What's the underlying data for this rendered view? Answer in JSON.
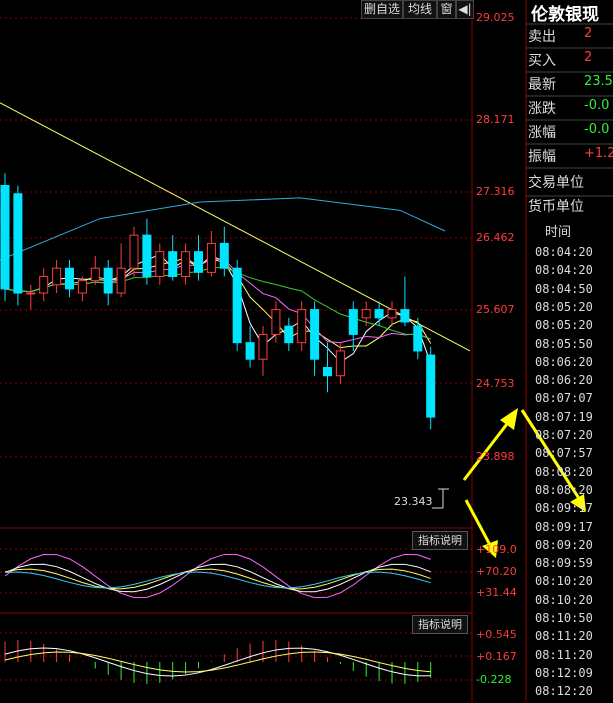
{
  "header": {
    "buttons": [
      {
        "label": "删自选"
      },
      {
        "label": "均线"
      },
      {
        "label": "窗"
      },
      {
        "label": "◀|"
      }
    ]
  },
  "price_axis": [
    "29.025",
    "28.171",
    "27.316",
    "26.462",
    "25.607",
    "24.753",
    "23.898"
  ],
  "low_marker": "23.343",
  "indicator1": {
    "button": "指标说明",
    "axis": [
      "+109.0",
      "+70.20",
      "+31.44"
    ]
  },
  "indicator2": {
    "button": "指标说明",
    "axis": [
      "+0.545",
      "+0.167",
      "-0.228"
    ]
  },
  "quote_panel": {
    "title": "伦敦银现",
    "rows": [
      {
        "label": "卖出",
        "value": "2",
        "color": "#ff3b3b"
      },
      {
        "label": "买入",
        "value": "2",
        "color": "#ff3b3b"
      },
      {
        "label": "最新",
        "value": "23.5",
        "color": "#33ee33"
      },
      {
        "label": "涨跌",
        "value": "-0.0",
        "color": "#33ee33"
      },
      {
        "label": "涨幅",
        "value": "-0.0",
        "color": "#33ee33"
      },
      {
        "label": "振幅",
        "value": "+1.2",
        "color": "#ff3b3b"
      },
      {
        "label": "交易单位",
        "value": ""
      },
      {
        "label": "货币单位",
        "value": ""
      }
    ]
  },
  "time_panel": {
    "header": "时间",
    "times": [
      "08:04:20",
      "08:04:20",
      "08:04:50",
      "08:05:20",
      "08:05:20",
      "08:05:50",
      "08:06:20",
      "08:06:20",
      "08:07:07",
      "08:07:19",
      "08:07:20",
      "08:07:57",
      "08:08:20",
      "08:08:20",
      "08:09:17",
      "08:09:17",
      "08:09:20",
      "08:09:59",
      "08:10:20",
      "08:10:20",
      "08:10:50",
      "08:11:20",
      "08:11:20",
      "08:12:09",
      "08:12:20"
    ]
  },
  "colors": {
    "up": "#ff3b3b",
    "down": "#00e5ff",
    "grid": "#8b0000",
    "arrow": "#ffff00"
  },
  "chart_data": {
    "type": "candlestick",
    "ylim": [
      23.343,
      29.025
    ],
    "candles": [
      {
        "o": 27.0,
        "c": 25.75,
        "h": 27.15,
        "l": 25.6
      },
      {
        "o": 26.9,
        "c": 25.7,
        "h": 27.0,
        "l": 25.55
      },
      {
        "o": 25.7,
        "c": 25.7,
        "h": 25.8,
        "l": 25.5
      },
      {
        "o": 25.7,
        "c": 25.9,
        "h": 26.0,
        "l": 25.6
      },
      {
        "o": 25.8,
        "c": 26.0,
        "h": 26.1,
        "l": 25.7
      },
      {
        "o": 26.0,
        "c": 25.75,
        "h": 26.1,
        "l": 25.65
      },
      {
        "o": 25.7,
        "c": 25.85,
        "h": 25.9,
        "l": 25.6
      },
      {
        "o": 25.85,
        "c": 26.0,
        "h": 26.15,
        "l": 25.8
      },
      {
        "o": 26.0,
        "c": 25.7,
        "h": 26.1,
        "l": 25.55
      },
      {
        "o": 25.7,
        "c": 26.0,
        "h": 26.3,
        "l": 25.65
      },
      {
        "o": 26.0,
        "c": 26.4,
        "h": 26.5,
        "l": 25.9
      },
      {
        "o": 26.4,
        "c": 25.9,
        "h": 26.6,
        "l": 25.8
      },
      {
        "o": 25.9,
        "c": 26.2,
        "h": 26.3,
        "l": 25.8
      },
      {
        "o": 26.2,
        "c": 25.9,
        "h": 26.4,
        "l": 25.85
      },
      {
        "o": 25.9,
        "c": 26.2,
        "h": 26.3,
        "l": 25.8
      },
      {
        "o": 26.2,
        "c": 25.95,
        "h": 26.4,
        "l": 25.85
      },
      {
        "o": 25.95,
        "c": 26.3,
        "h": 26.45,
        "l": 25.9
      },
      {
        "o": 26.3,
        "c": 26.0,
        "h": 26.5,
        "l": 25.9
      },
      {
        "o": 26.0,
        "c": 25.1,
        "h": 26.1,
        "l": 25.0
      },
      {
        "o": 25.1,
        "c": 24.9,
        "h": 25.3,
        "l": 24.8
      },
      {
        "o": 24.9,
        "c": 25.2,
        "h": 25.3,
        "l": 24.7
      },
      {
        "o": 25.2,
        "c": 25.5,
        "h": 25.6,
        "l": 25.1
      },
      {
        "o": 25.3,
        "c": 25.1,
        "h": 25.4,
        "l": 25.0
      },
      {
        "o": 25.1,
        "c": 25.5,
        "h": 25.6,
        "l": 25.0
      },
      {
        "o": 25.5,
        "c": 24.9,
        "h": 25.6,
        "l": 24.7
      },
      {
        "o": 24.8,
        "c": 24.7,
        "h": 25.1,
        "l": 24.5
      },
      {
        "o": 24.7,
        "c": 25.0,
        "h": 25.1,
        "l": 24.6
      },
      {
        "o": 25.5,
        "c": 25.2,
        "h": 25.6,
        "l": 25.0
      },
      {
        "o": 25.4,
        "c": 25.5,
        "h": 25.6,
        "l": 25.3
      },
      {
        "o": 25.5,
        "c": 25.4,
        "h": 25.6,
        "l": 25.3
      },
      {
        "o": 25.4,
        "c": 25.5,
        "h": 25.6,
        "l": 25.3
      },
      {
        "o": 25.5,
        "c": 25.35,
        "h": 25.9,
        "l": 25.3
      },
      {
        "o": 25.3,
        "c": 25.0,
        "h": 25.4,
        "l": 24.9
      },
      {
        "o": 24.95,
        "c": 24.2,
        "h": 25.05,
        "l": 24.05
      }
    ]
  }
}
